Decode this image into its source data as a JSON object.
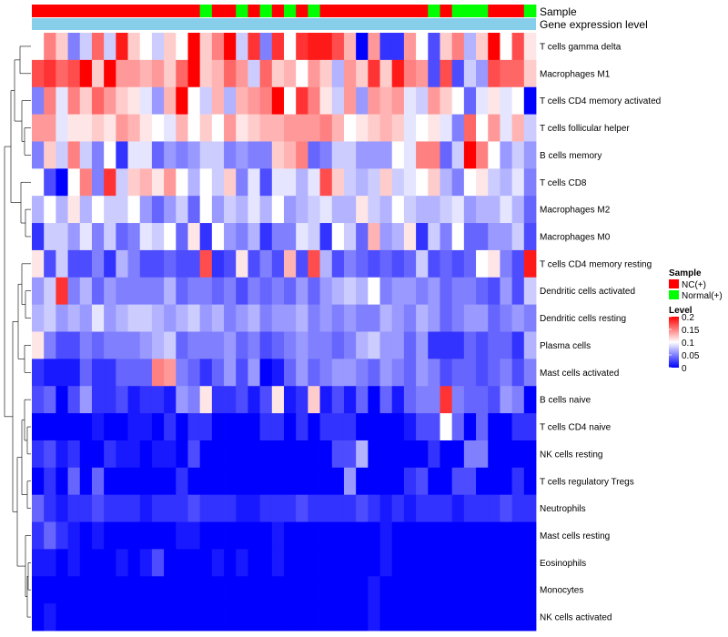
{
  "chart_data": {
    "type": "heatmap",
    "title": "",
    "annotation_tracks": [
      "Sample",
      "Gene expression level"
    ],
    "samples": {
      "groups": [
        "NC(+)",
        "NC(+)",
        "NC(+)",
        "NC(+)",
        "NC(+)",
        "NC(+)",
        "NC(+)",
        "NC(+)",
        "NC(+)",
        "NC(+)",
        "NC(+)",
        "NC(+)",
        "NC(+)",
        "NC(+)",
        "Normal(+)",
        "NC(+)",
        "NC(+)",
        "Normal(+)",
        "NC(+)",
        "Normal(+)",
        "NC(+)",
        "Normal(+)",
        "NC(+)",
        "Normal(+)",
        "NC(+)",
        "NC(+)",
        "NC(+)",
        "NC(+)",
        "NC(+)",
        "NC(+)",
        "NC(+)",
        "NC(+)",
        "NC(+)",
        "Normal(+)",
        "NC(+)",
        "Normal(+)",
        "Normal(+)",
        "Normal(+)",
        "NC(+)",
        "NC(+)",
        "NC(+)",
        "Normal(+)"
      ],
      "gene_expression_level_color": "#87CEEB"
    },
    "rows": [
      {
        "label": "T cells gamma delta",
        "values": [
          0.1,
          0.15,
          0.12,
          0.05,
          0.08,
          0.16,
          0.08,
          0.19,
          0.12,
          0.1,
          0.08,
          0.12,
          0.1,
          0.2,
          0.12,
          0.15,
          0.2,
          0.08,
          0.18,
          0.05,
          0.18,
          0.1,
          0.18,
          0.19,
          0.19,
          0.17,
          0.13,
          0.0,
          0.14,
          0.02,
          0.02,
          0.14,
          0.1,
          0.03,
          0.12,
          0.15,
          0.07,
          0.12,
          0.2,
          0.1,
          0.17,
          0.11
        ]
      },
      {
        "label": "Macrophages M1",
        "values": [
          0.17,
          0.18,
          0.16,
          0.17,
          0.2,
          0.12,
          0.2,
          0.14,
          0.14,
          0.13,
          0.14,
          0.12,
          0.16,
          0.2,
          0.12,
          0.13,
          0.16,
          0.14,
          0.08,
          0.16,
          0.12,
          0.13,
          0.1,
          0.14,
          0.12,
          0.07,
          0.14,
          0.12,
          0.18,
          0.12,
          0.19,
          0.15,
          0.14,
          0.03,
          0.17,
          0.03,
          0.08,
          0.06,
          0.17,
          0.16,
          0.16,
          0.12
        ]
      },
      {
        "label": "T cells CD4 memory activated",
        "values": [
          0.05,
          0.15,
          0.09,
          0.15,
          0.12,
          0.16,
          0.14,
          0.12,
          0.11,
          0.09,
          0.06,
          0.13,
          0.2,
          0.1,
          0.08,
          0.13,
          0.07,
          0.13,
          0.14,
          0.15,
          0.2,
          0.1,
          0.18,
          0.15,
          0.11,
          0.08,
          0.14,
          0.06,
          0.14,
          0.13,
          0.14,
          0.09,
          0.08,
          0.14,
          0.12,
          0.1,
          0.04,
          0.09,
          0.11,
          0.09,
          0.1,
          0.0
        ]
      },
      {
        "label": "T cells follicular helper",
        "values": [
          0.14,
          0.14,
          0.09,
          0.11,
          0.11,
          0.12,
          0.11,
          0.14,
          0.13,
          0.11,
          0.1,
          0.09,
          0.13,
          0.1,
          0.12,
          0.1,
          0.14,
          0.11,
          0.12,
          0.13,
          0.13,
          0.14,
          0.14,
          0.14,
          0.15,
          0.13,
          0.1,
          0.11,
          0.12,
          0.13,
          0.12,
          0.09,
          0.1,
          0.11,
          0.09,
          0.05,
          0.16,
          0.1,
          0.14,
          0.09,
          0.13,
          0.08
        ]
      },
      {
        "label": "B cells memory",
        "values": [
          0.05,
          0.12,
          0.08,
          0.15,
          0.08,
          0.05,
          0.1,
          0.02,
          0.09,
          0.09,
          0.04,
          0.06,
          0.05,
          0.06,
          0.08,
          0.08,
          0.05,
          0.06,
          0.05,
          0.05,
          0.12,
          0.13,
          0.15,
          0.04,
          0.05,
          0.08,
          0.08,
          0.06,
          0.06,
          0.06,
          0.1,
          0.09,
          0.15,
          0.15,
          0.04,
          0.08,
          0.2,
          0.15,
          0.1,
          0.06,
          0.08,
          0.06
        ]
      },
      {
        "label": "T cells CD8",
        "values": [
          0.1,
          0.03,
          0.0,
          0.1,
          0.15,
          0.05,
          0.18,
          0.08,
          0.12,
          0.13,
          0.11,
          0.14,
          0.1,
          0.07,
          0.1,
          0.08,
          0.12,
          0.05,
          0.09,
          0.03,
          0.09,
          0.09,
          0.07,
          0.09,
          0.17,
          0.12,
          0.08,
          0.07,
          0.08,
          0.12,
          0.08,
          0.09,
          0.1,
          0.12,
          0.07,
          0.05,
          0.1,
          0.11,
          0.08,
          0.07,
          0.09,
          0.05
        ]
      },
      {
        "label": "Macrophages M2",
        "values": [
          0.07,
          0.1,
          0.07,
          0.11,
          0.07,
          0.1,
          0.08,
          0.08,
          0.1,
          0.06,
          0.04,
          0.06,
          0.08,
          0.04,
          0.1,
          0.06,
          0.08,
          0.07,
          0.09,
          0.07,
          0.1,
          0.06,
          0.07,
          0.08,
          0.09,
          0.07,
          0.07,
          0.11,
          0.08,
          0.07,
          0.1,
          0.08,
          0.07,
          0.07,
          0.08,
          0.09,
          0.06,
          0.07,
          0.07,
          0.09,
          0.07,
          0.04
        ]
      },
      {
        "label": "Macrophages M0",
        "values": [
          0.02,
          0.08,
          0.08,
          0.06,
          0.09,
          0.05,
          0.08,
          0.04,
          0.05,
          0.09,
          0.08,
          0.1,
          0.04,
          0.11,
          0.02,
          0.1,
          0.06,
          0.05,
          0.07,
          0.02,
          0.05,
          0.05,
          0.09,
          0.08,
          0.02,
          0.1,
          0.08,
          0.04,
          0.13,
          0.06,
          0.07,
          0.11,
          0.02,
          0.08,
          0.05,
          0.1,
          0.04,
          0.04,
          0.06,
          0.06,
          0.08,
          0.03
        ]
      },
      {
        "label": "T cells CD4 memory resting",
        "values": [
          0.11,
          0.03,
          0.08,
          0.03,
          0.03,
          0.05,
          0.02,
          0.07,
          0.05,
          0.03,
          0.03,
          0.04,
          0.03,
          0.03,
          0.17,
          0.02,
          0.03,
          0.11,
          0.03,
          0.05,
          0.03,
          0.13,
          0.03,
          0.17,
          0.07,
          0.03,
          0.05,
          0.04,
          0.03,
          0.04,
          0.03,
          0.04,
          0.08,
          0.03,
          0.04,
          0.03,
          0.04,
          0.1,
          0.11,
          0.05,
          0.03,
          0.19
        ]
      },
      {
        "label": "Dendritic cells activated",
        "values": [
          0.06,
          0.08,
          0.18,
          0.05,
          0.07,
          0.04,
          0.06,
          0.05,
          0.05,
          0.05,
          0.05,
          0.07,
          0.04,
          0.05,
          0.05,
          0.04,
          0.05,
          0.03,
          0.05,
          0.04,
          0.05,
          0.04,
          0.06,
          0.04,
          0.06,
          0.07,
          0.08,
          0.07,
          0.1,
          0.05,
          0.06,
          0.06,
          0.05,
          0.06,
          0.04,
          0.05,
          0.05,
          0.04,
          0.03,
          0.06,
          0.03,
          0.08
        ]
      },
      {
        "label": "Dendritic cells resting",
        "values": [
          0.07,
          0.08,
          0.06,
          0.07,
          0.06,
          0.09,
          0.06,
          0.07,
          0.08,
          0.08,
          0.07,
          0.06,
          0.07,
          0.08,
          0.06,
          0.07,
          0.05,
          0.06,
          0.07,
          0.05,
          0.06,
          0.06,
          0.07,
          0.05,
          0.06,
          0.05,
          0.06,
          0.05,
          0.05,
          0.07,
          0.06,
          0.05,
          0.07,
          0.06,
          0.04,
          0.05,
          0.06,
          0.06,
          0.04,
          0.05,
          0.06,
          0.05
        ]
      },
      {
        "label": "Plasma cells",
        "values": [
          0.11,
          0.05,
          0.03,
          0.03,
          0.05,
          0.04,
          0.05,
          0.05,
          0.05,
          0.06,
          0.07,
          0.08,
          0.04,
          0.05,
          0.05,
          0.05,
          0.06,
          0.04,
          0.05,
          0.03,
          0.04,
          0.05,
          0.06,
          0.05,
          0.05,
          0.04,
          0.05,
          0.07,
          0.08,
          0.06,
          0.06,
          0.04,
          0.06,
          0.02,
          0.02,
          0.02,
          0.04,
          0.03,
          0.04,
          0.04,
          0.02,
          0.07
        ]
      },
      {
        "label": "Mast cells activated",
        "values": [
          0.02,
          0.01,
          0.01,
          0.01,
          0.04,
          0.02,
          0.02,
          0.04,
          0.04,
          0.04,
          0.15,
          0.14,
          0.05,
          0.04,
          0.02,
          0.04,
          0.06,
          0.03,
          0.06,
          0.0,
          0.01,
          0.04,
          0.06,
          0.04,
          0.05,
          0.06,
          0.06,
          0.05,
          0.04,
          0.06,
          0.05,
          0.04,
          0.06,
          0.05,
          0.03,
          0.04,
          0.04,
          0.03,
          0.04,
          0.05,
          0.03,
          0.05
        ]
      },
      {
        "label": "B cells naive",
        "values": [
          0.03,
          0.04,
          0.0,
          0.03,
          0.06,
          0.02,
          0.02,
          0.03,
          0.01,
          0.02,
          0.02,
          0.01,
          0.06,
          0.05,
          0.11,
          0.02,
          0.02,
          0.03,
          0.01,
          0.03,
          0.11,
          0.01,
          0.02,
          0.12,
          0.01,
          0.03,
          0.01,
          0.04,
          0.0,
          0.04,
          0.01,
          0.04,
          0.05,
          0.05,
          0.18,
          0.05,
          0.04,
          0.04,
          0.03,
          0.06,
          0.05,
          0.0
        ]
      },
      {
        "label": "T cells CD4 naive",
        "values": [
          0.0,
          0.0,
          0.0,
          0.0,
          0.0,
          0.01,
          0.0,
          0.0,
          0.01,
          0.01,
          0.0,
          0.02,
          0.0,
          0.02,
          0.02,
          0.0,
          0.0,
          0.0,
          0.0,
          0.02,
          0.02,
          0.0,
          0.02,
          0.0,
          0.02,
          0.02,
          0.02,
          0.0,
          0.0,
          0.0,
          0.0,
          0.01,
          0.03,
          0.03,
          0.1,
          0.04,
          0.0,
          0.04,
          0.0,
          0.0,
          0.02,
          0.02
        ]
      },
      {
        "label": "NK cells resting",
        "values": [
          0.02,
          0.03,
          0.01,
          0.02,
          0.0,
          0.0,
          0.02,
          0.01,
          0.01,
          0.0,
          0.01,
          0.01,
          0.0,
          0.03,
          0.0,
          0.0,
          0.0,
          0.0,
          0.0,
          0.0,
          0.0,
          0.0,
          0.0,
          0.0,
          0.0,
          0.03,
          0.03,
          0.07,
          0.0,
          0.0,
          0.0,
          0.0,
          0.0,
          0.02,
          0.0,
          0.0,
          0.05,
          0.05,
          0.0,
          0.0,
          0.0,
          0.0
        ]
      },
      {
        "label": "T cells regulatory  Tregs",
        "values": [
          0.0,
          0.02,
          0.0,
          0.04,
          0.0,
          0.04,
          0.0,
          0.0,
          0.0,
          0.0,
          0.0,
          0.0,
          0.02,
          0.0,
          0.0,
          0.0,
          0.0,
          0.0,
          0.0,
          0.0,
          0.0,
          0.0,
          0.0,
          0.0,
          0.0,
          0.0,
          0.06,
          0.0,
          0.0,
          0.0,
          0.0,
          0.02,
          0.03,
          0.0,
          0.0,
          0.03,
          0.03,
          0.0,
          0.0,
          0.0,
          0.02,
          0.0
        ]
      },
      {
        "label": "Neutrophils",
        "values": [
          0.04,
          0.02,
          0.01,
          0.02,
          0.02,
          0.03,
          0.02,
          0.02,
          0.02,
          0.01,
          0.02,
          0.02,
          0.02,
          0.03,
          0.02,
          0.02,
          0.02,
          0.01,
          0.01,
          0.02,
          0.02,
          0.02,
          0.03,
          0.02,
          0.02,
          0.02,
          0.02,
          0.03,
          0.02,
          0.01,
          0.02,
          0.01,
          0.02,
          0.02,
          0.02,
          0.01,
          0.02,
          0.02,
          0.02,
          0.03,
          0.02,
          0.02
        ]
      },
      {
        "label": "Mast cells resting",
        "values": [
          0.02,
          0.04,
          0.02,
          0.01,
          0.0,
          0.01,
          0.0,
          0.0,
          0.0,
          0.0,
          0.0,
          0.0,
          0.01,
          0.01,
          0.0,
          0.0,
          0.0,
          0.0,
          0.0,
          0.0,
          0.01,
          0.0,
          0.0,
          0.0,
          0.0,
          0.0,
          0.0,
          0.0,
          0.0,
          0.01,
          0.0,
          0.0,
          0.0,
          0.0,
          0.0,
          0.0,
          0.0,
          0.0,
          0.0,
          0.0,
          0.0,
          0.0
        ]
      },
      {
        "label": "Eosinophils",
        "values": [
          0.01,
          0.01,
          0.0,
          0.01,
          0.0,
          0.0,
          0.0,
          0.01,
          0.0,
          0.01,
          0.03,
          0.0,
          0.0,
          0.0,
          0.0,
          0.01,
          0.0,
          0.01,
          0.0,
          0.0,
          0.01,
          0.0,
          0.0,
          0.0,
          0.0,
          0.0,
          0.0,
          0.0,
          0.0,
          0.01,
          0.0,
          0.0,
          0.0,
          0.0,
          0.0,
          0.0,
          0.0,
          0.0,
          0.0,
          0.0,
          0.0,
          0.0
        ]
      },
      {
        "label": "Monocytes",
        "values": [
          0.0,
          0.0,
          0.0,
          0.0,
          0.0,
          0.0,
          0.0,
          0.0,
          0.0,
          0.0,
          0.0,
          0.0,
          0.0,
          0.0,
          0.0,
          0.0,
          0.0,
          0.0,
          0.0,
          0.0,
          0.0,
          0.0,
          0.0,
          0.0,
          0.0,
          0.0,
          0.0,
          0.0,
          0.01,
          0.0,
          0.0,
          0.0,
          0.0,
          0.0,
          0.0,
          0.0,
          0.0,
          0.0,
          0.0,
          0.0,
          0.0,
          0.0
        ]
      },
      {
        "label": "NK cells activated",
        "values": [
          0.0,
          0.01,
          0.0,
          0.0,
          0.0,
          0.0,
          0.0,
          0.0,
          0.0,
          0.0,
          0.0,
          0.0,
          0.0,
          0.0,
          0.0,
          0.0,
          0.0,
          0.0,
          0.0,
          0.0,
          0.0,
          0.0,
          0.0,
          0.0,
          0.0,
          0.0,
          0.0,
          0.0,
          0.01,
          0.0,
          0.0,
          0.0,
          0.0,
          0.0,
          0.0,
          0.0,
          0.0,
          0.0,
          0.0,
          0.0,
          0.0,
          0.0
        ]
      }
    ],
    "color_scale": {
      "min": 0,
      "max": 0.2,
      "low": "#0000FF",
      "mid": "#FFFFFF",
      "high": "#FF0000"
    },
    "legend": {
      "position": "right",
      "sample": {
        "title": "Sample",
        "entries": [
          {
            "label": "NC(+)",
            "color": "#FF0000"
          },
          {
            "label": "Normal(+)",
            "color": "#00FF00"
          }
        ]
      },
      "level": {
        "title": "Level",
        "ticks": [
          "0.2",
          "0.15",
          "0.1",
          "0.05",
          "0"
        ]
      }
    },
    "row_dendrogram": true
  }
}
